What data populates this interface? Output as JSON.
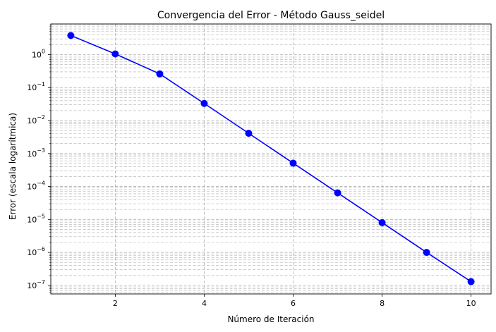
{
  "chart_data": {
    "type": "line",
    "title": "Convergencia del Error - Método Gauss_seidel",
    "xlabel": "Número de Iteración",
    "ylabel": "Error (escala logarítmica)",
    "yscale": "log",
    "xlim": [
      0.55,
      10.45
    ],
    "ylim": [
      5.5e-08,
      8.5
    ],
    "grid": true,
    "x_ticks": [
      2,
      4,
      6,
      8,
      10
    ],
    "y_ticks": [
      -7,
      -6,
      -5,
      -4,
      -3,
      -2,
      -1,
      0
    ],
    "series": [
      {
        "color": "#0000ff",
        "marker": "circle",
        "x": [
          1,
          2,
          3,
          4,
          5,
          6,
          7,
          8,
          9,
          10
        ],
        "y": [
          3.8,
          1.05,
          0.26,
          0.033,
          0.0041,
          0.00051,
          6.4e-05,
          8e-06,
          1e-06,
          1.3e-07
        ]
      }
    ]
  }
}
